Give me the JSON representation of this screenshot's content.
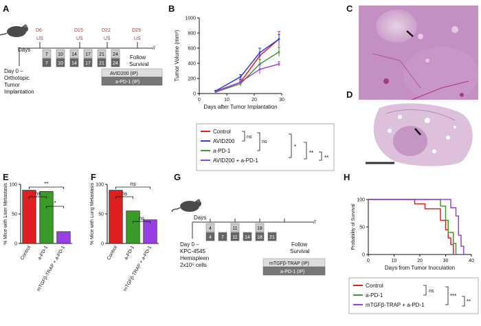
{
  "colors": {
    "control": "#e02020",
    "avid200": "#2a3ee0",
    "apd1": "#3a9a2a",
    "combo": "#9a3ee8",
    "days_red": "#d81e1e",
    "histo_pink": "#c9a0c8",
    "histo_bg": "#e3cfe0"
  },
  "panels": {
    "A": {
      "label": "A",
      "days": "Days",
      "ticks_top": [
        "7",
        "10",
        "14",
        "17",
        "21",
        "24"
      ],
      "ticks_bottom": [
        "7",
        "10",
        "14",
        "17",
        "21",
        "24"
      ],
      "us_marks": [
        {
          "day": "D6",
          "us": "US"
        },
        {
          "day": "D15",
          "us": "US"
        },
        {
          "day": "D22",
          "us": "US"
        },
        {
          "day": "D29",
          "us": "US"
        }
      ],
      "day0": [
        "Day 0 –",
        "Orthotopic",
        "Tumor",
        "Implantation"
      ],
      "follow": [
        "Follow",
        "Survival"
      ],
      "treat1": "AVID200 (IP)",
      "treat2": "a-PD-1 (IP)"
    },
    "B": {
      "label": "B"
    },
    "C": {
      "label": "C"
    },
    "D": {
      "label": "D"
    },
    "E": {
      "label": "E"
    },
    "F": {
      "label": "F"
    },
    "G": {
      "label": "G",
      "days": "Days",
      "ticks_top": [
        "4",
        "11",
        "18"
      ],
      "ticks_bottom": [
        "4",
        "7",
        "11",
        "14",
        "18",
        "21"
      ],
      "day0": [
        "Day 0 –",
        "KPC-4545",
        "Hemispleen",
        "2x10⁵ cells"
      ],
      "follow": [
        "Follow",
        "Survival"
      ],
      "treat1": "mTGFβ-TRAP (IP)",
      "treat2": "a-PD-1 (IP)"
    },
    "H": {
      "label": "H"
    }
  },
  "chart_data": [
    {
      "panel": "B",
      "type": "line",
      "xlabel": "Days after Tumor Implantation",
      "ylabel": "Tumor Volume (mm³)",
      "xlim": [
        0,
        30
      ],
      "ylim": [
        0,
        1000
      ],
      "xticks": [
        "0",
        "10",
        "20",
        "30"
      ],
      "yticks": [
        "0",
        "200",
        "400",
        "600",
        "800",
        "1000"
      ],
      "x": [
        6,
        15,
        22,
        29
      ],
      "series": [
        {
          "name": "Control",
          "color": "#e02020",
          "values": [
            30,
            150,
            500,
            720
          ],
          "err": [
            8,
            40,
            100,
            100
          ]
        },
        {
          "name": "AVID200",
          "color": "#2a3ee0",
          "values": [
            35,
            220,
            540,
            720
          ],
          "err": [
            8,
            30,
            60,
            60
          ]
        },
        {
          "name": "a-PD-1",
          "color": "#3a9a2a",
          "values": [
            20,
            130,
            390,
            550
          ],
          "err": [
            6,
            30,
            60,
            60
          ]
        },
        {
          "name": "AVID200 + a-PD-1",
          "color": "#9a3ee8",
          "values": [
            25,
            150,
            320,
            390
          ],
          "err": [
            6,
            30,
            60,
            30
          ]
        }
      ],
      "legend_stats": [
        "ns",
        "ns",
        "*",
        "**",
        "**"
      ]
    },
    {
      "panel": "E",
      "type": "bar",
      "ylabel": "% Mice with Liver Metastasis",
      "ylim": [
        0,
        100
      ],
      "yticks": [
        "0",
        "50",
        "100"
      ],
      "categories": [
        "Control",
        "a-PD-1",
        "mTGFβ-TRAP + a-PD-1"
      ],
      "values": [
        90,
        88,
        20
      ],
      "colors": [
        "#e02020",
        "#3a9a2a",
        "#9a3ee8"
      ],
      "stats": [
        "**",
        "ns",
        "*"
      ]
    },
    {
      "panel": "F",
      "type": "bar",
      "ylabel": "% Mice with Lung Metastasis",
      "ylim": [
        0,
        100
      ],
      "yticks": [
        "0",
        "50",
        "100"
      ],
      "categories": [
        "Control",
        "a-PD-1",
        "mTGFβ-TRAP + a-PD-1"
      ],
      "values": [
        90,
        55,
        40
      ],
      "colors": [
        "#e02020",
        "#3a9a2a",
        "#9a3ee8"
      ],
      "stats": [
        "ns",
        "ns",
        "ns"
      ]
    },
    {
      "panel": "H",
      "type": "line",
      "xlabel": "Days from Tumor Inoculation",
      "ylabel": "Probability of Survival",
      "xlim": [
        0,
        40
      ],
      "ylim": [
        0,
        100
      ],
      "xticks": [
        "0",
        "10",
        "20",
        "30",
        "40"
      ],
      "yticks": [
        "0",
        "50",
        "100"
      ],
      "series": [
        {
          "name": "Control",
          "color": "#e02020",
          "steps": [
            [
              0,
              100
            ],
            [
              18,
              100
            ],
            [
              18,
              92
            ],
            [
              22,
              92
            ],
            [
              22,
              83
            ],
            [
              28,
              83
            ],
            [
              28,
              62
            ],
            [
              30,
              62
            ],
            [
              30,
              45
            ],
            [
              31,
              45
            ],
            [
              31,
              30
            ],
            [
              32,
              30
            ],
            [
              32,
              18
            ],
            [
              33,
              18
            ],
            [
              33,
              0
            ]
          ]
        },
        {
          "name": "a-PD-1",
          "color": "#3a9a2a",
          "steps": [
            [
              0,
              100
            ],
            [
              28,
              100
            ],
            [
              28,
              88
            ],
            [
              30,
              88
            ],
            [
              30,
              62
            ],
            [
              31,
              62
            ],
            [
              31,
              40
            ],
            [
              33,
              40
            ],
            [
              33,
              20
            ],
            [
              34,
              20
            ],
            [
              34,
              0
            ]
          ]
        },
        {
          "name": "mTGFβ-TRAP + a-PD-1",
          "color": "#9a3ee8",
          "steps": [
            [
              0,
              100
            ],
            [
              32,
              100
            ],
            [
              32,
              85
            ],
            [
              34,
              85
            ],
            [
              34,
              70
            ],
            [
              35,
              70
            ],
            [
              35,
              35
            ],
            [
              36,
              35
            ],
            [
              36,
              15
            ],
            [
              37,
              15
            ],
            [
              37,
              0
            ]
          ]
        }
      ],
      "legend_stats": [
        "ns",
        "***",
        "**"
      ]
    }
  ]
}
